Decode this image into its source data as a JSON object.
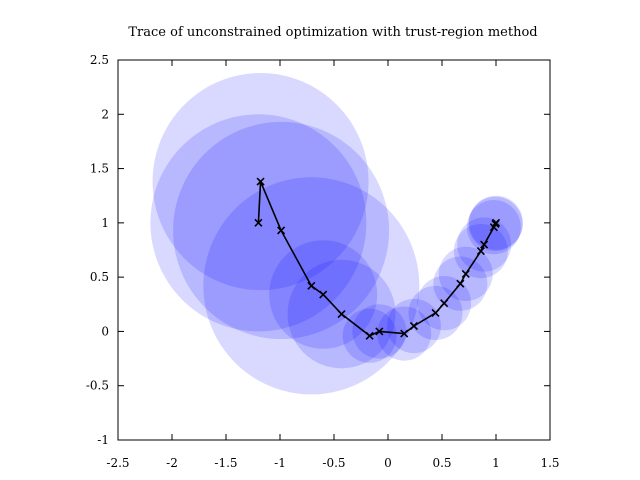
{
  "chart_data": {
    "type": "scatter",
    "title": "Trace of unconstrained optimization with trust-region method",
    "xlabel": "",
    "ylabel": "",
    "xlim": [
      -2.5,
      1.5
    ],
    "ylim": [
      -1,
      2.5
    ],
    "x_ticks": [
      -2.5,
      -2,
      -1.5,
      -1,
      -0.5,
      0,
      0.5,
      1,
      1.5
    ],
    "y_ticks": [
      -1,
      -0.5,
      0,
      0.5,
      1,
      1.5,
      2,
      2.5
    ],
    "x_tick_labels": [
      "-2.5",
      "-2",
      "-1.5",
      "-1",
      "-0.5",
      "0",
      "0.5",
      "1",
      "1.5"
    ],
    "y_tick_labels": [
      "-1",
      "-0.5",
      "0",
      "0.5",
      "1",
      "1.5",
      "2",
      "2.5"
    ],
    "region_color": "#0000ff",
    "series": [
      {
        "name": "trace",
        "x": [
          -1.2,
          -1.18,
          -0.99,
          -0.71,
          -0.6,
          -0.43,
          -0.17,
          -0.08,
          0.15,
          0.24,
          0.44,
          0.52,
          0.67,
          0.72,
          0.86,
          0.89,
          0.98,
          0.995,
          1.0
        ],
        "y": [
          1.0,
          1.38,
          0.93,
          0.42,
          0.34,
          0.16,
          -0.04,
          0.0,
          -0.02,
          0.05,
          0.17,
          0.26,
          0.44,
          0.53,
          0.74,
          0.8,
          0.96,
          0.99,
          1.0
        ]
      }
    ],
    "trust_regions": [
      {
        "cx": -1.2,
        "cy": 1.0,
        "r": 1.0
      },
      {
        "cx": -1.18,
        "cy": 1.38,
        "r": 1.0
      },
      {
        "cx": -0.99,
        "cy": 0.93,
        "r": 1.0
      },
      {
        "cx": -0.71,
        "cy": 0.42,
        "r": 1.0
      },
      {
        "cx": -0.6,
        "cy": 0.34,
        "r": 0.5
      },
      {
        "cx": -0.43,
        "cy": 0.16,
        "r": 0.5
      },
      {
        "cx": -0.17,
        "cy": -0.04,
        "r": 0.25
      },
      {
        "cx": -0.08,
        "cy": 0.0,
        "r": 0.25
      },
      {
        "cx": 0.15,
        "cy": -0.02,
        "r": 0.25
      },
      {
        "cx": 0.24,
        "cy": 0.05,
        "r": 0.25
      },
      {
        "cx": 0.44,
        "cy": 0.17,
        "r": 0.25
      },
      {
        "cx": 0.52,
        "cy": 0.26,
        "r": 0.25
      },
      {
        "cx": 0.67,
        "cy": 0.44,
        "r": 0.25
      },
      {
        "cx": 0.72,
        "cy": 0.53,
        "r": 0.25
      },
      {
        "cx": 0.86,
        "cy": 0.74,
        "r": 0.25
      },
      {
        "cx": 0.89,
        "cy": 0.8,
        "r": 0.25
      },
      {
        "cx": 0.98,
        "cy": 0.96,
        "r": 0.25
      },
      {
        "cx": 0.995,
        "cy": 0.99,
        "r": 0.25
      },
      {
        "cx": 1.0,
        "cy": 1.0,
        "r": 0.25
      }
    ]
  }
}
